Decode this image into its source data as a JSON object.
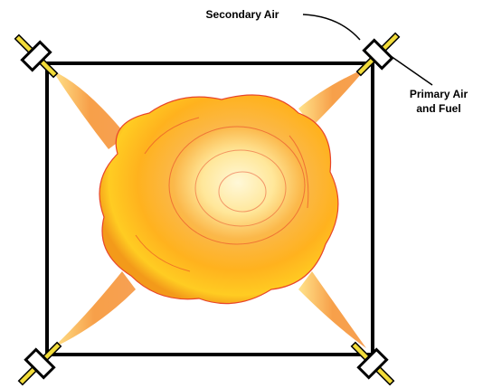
{
  "labels": {
    "secondary_air": "Secondary Air",
    "primary_air": [
      "Primary Air",
      "and Fuel"
    ]
  }
}
